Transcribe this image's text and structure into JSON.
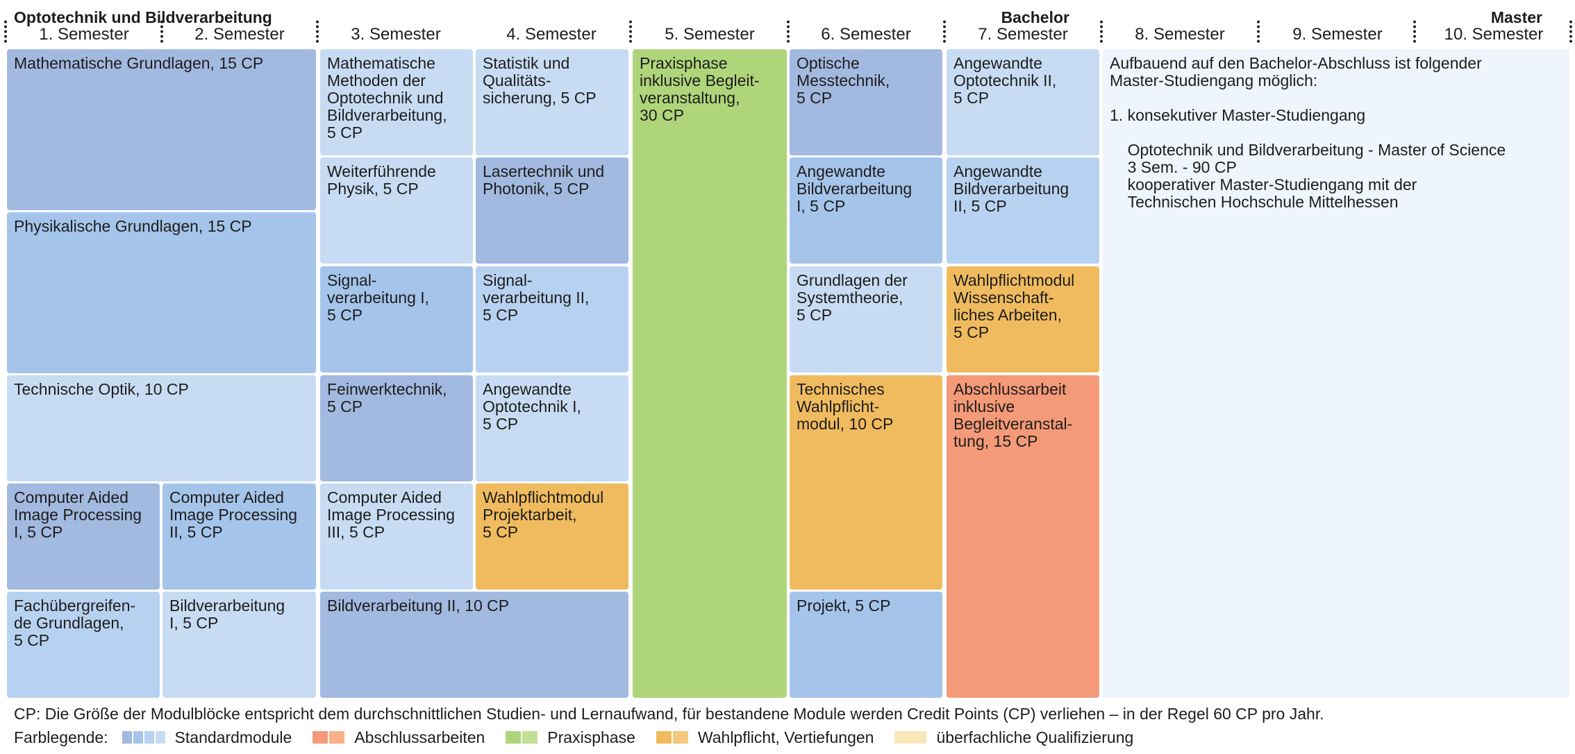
{
  "header": {
    "program": "Optotechnik und Bildverarbeitung",
    "bachelor": "Bachelor",
    "master": "Master",
    "semesters": [
      "1. Semester",
      "2. Semester",
      "3. Semester",
      "4. Semester",
      "5. Semester",
      "6. Semester",
      "7. Semester",
      "8. Semester",
      "9. Semester",
      "10. Semester"
    ]
  },
  "colors": {
    "standard_dark": "#a2b9e0",
    "standard_mid": "#a4c4ea",
    "standard_light": "#c7dcf3",
    "thesis": "#f59a78",
    "practice": "#afd57b",
    "elective": "#f0bb5f",
    "master_area": "#eef5fc"
  },
  "modules": [
    {
      "label": "Mathematische Grundlagen, 15 CP"
    },
    {
      "label": "Physikalische Grundlagen, 15 CP"
    },
    {
      "label": "Technische Optik, 10 CP"
    },
    {
      "label": "Computer Aided\nImage Processing\nI, 5 CP"
    },
    {
      "label": "Computer Aided\nImage Processing\nII, 5 CP"
    },
    {
      "label": "Fachübergreifen-\nde Grundlagen,\n5 CP"
    },
    {
      "label": "Bildverarbeitung\nI, 5 CP"
    },
    {
      "label": "Mathematische\nMethoden der\nOptotechnik und\nBildverarbeitung,\n5 CP"
    },
    {
      "label": "Weiterführende\nPhysik, 5 CP"
    },
    {
      "label": "Signal-\nverarbeitung I,\n5 CP"
    },
    {
      "label": "Feinwerktechnik,\n5 CP"
    },
    {
      "label": "Computer Aided\nImage Processing\nIII, 5 CP"
    },
    {
      "label": "Statistik und\nQualitäts-\nsicherung, 5 CP"
    },
    {
      "label": "Lasertechnik und\nPhotonik, 5 CP"
    },
    {
      "label": "Signal-\nverarbeitung II,\n5 CP"
    },
    {
      "label": "Angewandte\nOptotechnik I,\n5 CP"
    },
    {
      "label": "Wahlpflichtmodul\nProjektarbeit,\n5 CP"
    },
    {
      "label": "Bildverarbeitung II, 10 CP"
    },
    {
      "label": "Praxisphase\ninklusive Begleit-\nveranstaltung,\n30 CP"
    },
    {
      "label": "Optische\nMesstechnik,\n5 CP"
    },
    {
      "label": "Angewandte\nBildverarbeitung\nI, 5 CP"
    },
    {
      "label": "Grundlagen der\nSystemtheorie,\n5 CP"
    },
    {
      "label": "Technisches\nWahlpflicht-\nmodul, 10 CP"
    },
    {
      "label": "Projekt, 5 CP"
    },
    {
      "label": "Angewandte\nOptotechnik II,\n5 CP"
    },
    {
      "label": "Angewandte\nBildverarbeitung\nII, 5 CP"
    },
    {
      "label": "Wahlpflichtmodul\nWissenschaft-\nliches Arbeiten,\n5 CP"
    },
    {
      "label": "Abschlussarbeit\ninklusive\nBegleitveranstal-\ntung, 15 CP"
    }
  ],
  "master_text": "Aufbauend auf den Bachelor-Abschluss ist folgender\nMaster-Studiengang möglich:\n\n1. konsekutiver Master-Studiengang\n\n    Optotechnik und Bildverarbeitung - Master of Science\n    3 Sem. - 90 CP\n    kooperativer Master-Studiengang mit der\n    Technischen Hochschule Mittelhessen",
  "footnote": "CP: Die Größe der Modulblöcke entspricht dem durchschnittlichen Studien- und Lernaufwand, für bestandene Module werden Credit Points (CP) verliehen – in der Regel 60 CP pro Jahr.",
  "legend": {
    "title": "Farblegende:",
    "items": [
      {
        "label": "Standardmodule"
      },
      {
        "label": "Abschlussarbeiten"
      },
      {
        "label": "Praxisphase"
      },
      {
        "label": "Wahlpflicht, Vertiefungen"
      },
      {
        "label": "überfachliche Qualifizierung"
      }
    ]
  }
}
